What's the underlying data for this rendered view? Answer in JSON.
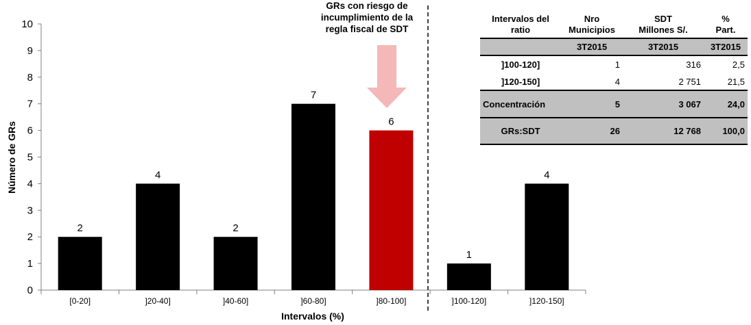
{
  "chart_data": {
    "type": "bar",
    "categories": [
      "[0-20]",
      "]20-40]",
      "]40-60]",
      "]60-80]",
      "]80-100]",
      "]100-120]",
      "]120-150]"
    ],
    "values": [
      2,
      4,
      2,
      7,
      6,
      1,
      4
    ],
    "bar_colors": [
      "#000000",
      "#000000",
      "#000000",
      "#000000",
      "#c00000",
      "#000000",
      "#000000"
    ],
    "title": "",
    "xlabel": "Intervalos (%)",
    "ylabel": "Número de GRs",
    "ylim": [
      0,
      10
    ],
    "yticks": [
      "0",
      "1",
      "2",
      "2",
      "3",
      "4",
      "5",
      "6",
      "7",
      "8",
      "9",
      "10"
    ],
    "grid": false,
    "legend": "none",
    "annotation": [
      "GRs con riesgo de",
      "incumplimiento de la",
      "regla fiscal de SDT"
    ],
    "arrow_color": "#f4b8b8"
  },
  "summary_table": {
    "headers": [
      [
        "Intervalos del",
        "ratio"
      ],
      [
        "Nro",
        "Municipios"
      ],
      [
        "SDT",
        "Millones S/."
      ],
      [
        "%",
        "Part."
      ]
    ],
    "period_row": [
      "",
      "3T2015",
      "3T2015",
      "3T2015"
    ],
    "rows": [
      [
        "]100-120]",
        "1",
        "316",
        "2,5"
      ],
      [
        "]120-150]",
        "4",
        "2 751",
        "21,5"
      ]
    ],
    "concentration": [
      "Concentración",
      "5",
      "3 067",
      "24,0"
    ],
    "total": [
      "GRs:SDT",
      "26",
      "12 768",
      "100,0"
    ]
  }
}
